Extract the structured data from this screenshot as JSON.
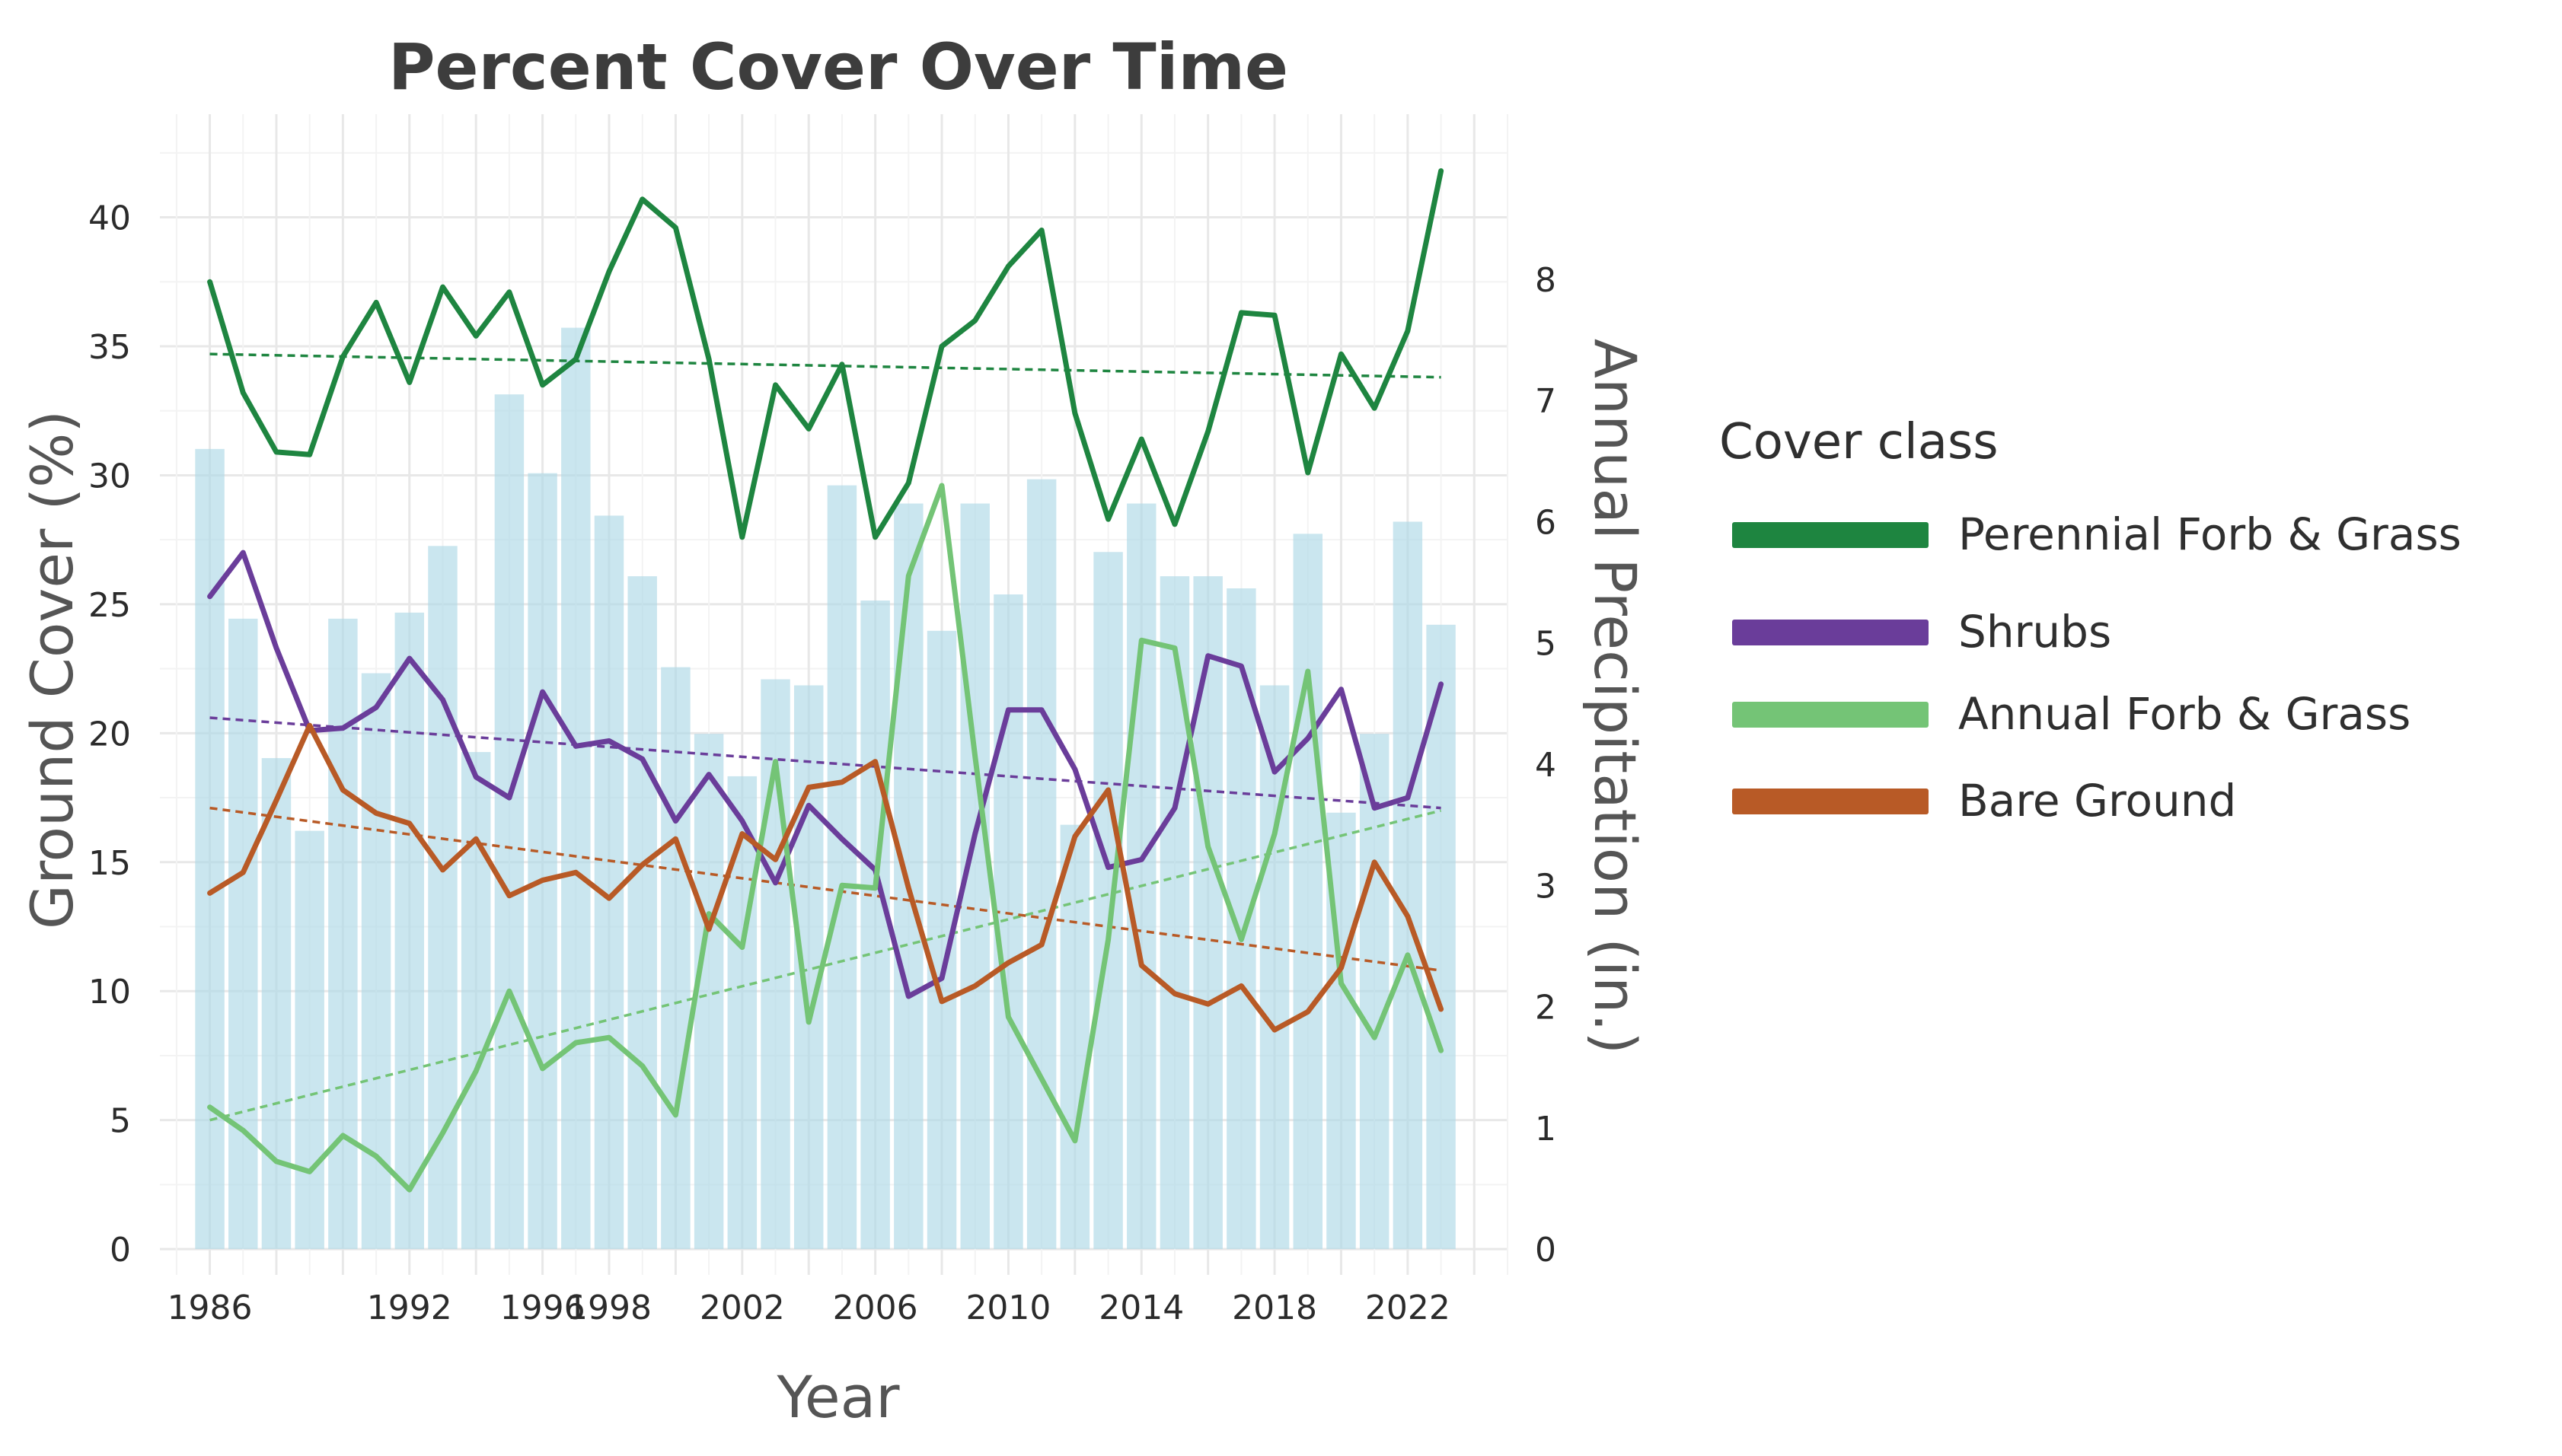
{
  "chart_data": {
    "type": "bar+line",
    "title": "Percent Cover Over Time",
    "xlabel": "Year",
    "ylabel": "Ground Cover (%)",
    "y2label": "Annual Precipitation (in.)",
    "xlim": [
      1984.5,
      2025
    ],
    "ylim": [
      -1,
      44
    ],
    "y2_scale_factor": 4.7,
    "x_ticks": [
      1986,
      1992,
      1996,
      1998,
      2002,
      2006,
      2010,
      2014,
      2018,
      2022
    ],
    "y_ticks": [
      0,
      5,
      10,
      15,
      20,
      25,
      30,
      35,
      40
    ],
    "y2_ticks": [
      0,
      1,
      2,
      3,
      4,
      5,
      6,
      7,
      8
    ],
    "grid": true,
    "legend_title": "Cover class",
    "legend_position": "right",
    "years": [
      1986,
      1987,
      1988,
      1989,
      1990,
      1991,
      1992,
      1993,
      1994,
      1995,
      1996,
      1997,
      1998,
      1999,
      2000,
      2001,
      2002,
      2003,
      2004,
      2005,
      2006,
      2007,
      2008,
      2009,
      2010,
      2011,
      2012,
      2013,
      2014,
      2015,
      2016,
      2017,
      2018,
      2019,
      2020,
      2021,
      2022,
      2023
    ],
    "precipitation": {
      "name": "Annual Precipitation (in.)",
      "color": "#add8e6",
      "values": [
        6.6,
        5.2,
        4.05,
        3.45,
        5.2,
        4.75,
        5.25,
        5.8,
        4.1,
        7.05,
        6.4,
        7.6,
        6.05,
        5.55,
        4.8,
        4.25,
        3.9,
        4.7,
        4.65,
        6.3,
        5.35,
        6.15,
        5.1,
        6.15,
        5.4,
        6.35,
        3.5,
        5.75,
        6.15,
        5.55,
        5.55,
        5.45,
        4.65,
        5.9,
        3.6,
        4.25,
        6.0,
        5.15
      ]
    },
    "series": [
      {
        "name": "Perennial Forb & Grass",
        "color": "#1e8540",
        "values": [
          37.5,
          33.2,
          30.9,
          30.8,
          34.6,
          36.7,
          33.6,
          37.3,
          35.4,
          37.1,
          33.5,
          34.5,
          37.9,
          40.7,
          39.6,
          34.5,
          27.6,
          33.5,
          31.8,
          34.3,
          27.6,
          29.7,
          35.0,
          36.0,
          38.1,
          39.5,
          32.4,
          28.3,
          31.4,
          28.1,
          31.7,
          36.3,
          36.2,
          30.1,
          34.7,
          32.6,
          35.6,
          41.8
        ],
        "trend": [
          34.7,
          33.8
        ]
      },
      {
        "name": "Shrubs",
        "color": "#6a3d9a",
        "values": [
          25.3,
          27.0,
          23.3,
          20.1,
          20.2,
          21.0,
          22.9,
          21.3,
          18.3,
          17.5,
          21.6,
          19.5,
          19.7,
          19.0,
          16.6,
          18.4,
          16.6,
          14.2,
          17.2,
          15.9,
          14.7,
          9.8,
          10.5,
          16.1,
          20.9,
          20.9,
          18.6,
          14.8,
          15.1,
          17.1,
          23.0,
          22.6,
          18.5,
          19.8,
          21.7,
          17.1,
          17.5,
          21.9
        ],
        "trend": [
          20.6,
          17.1
        ]
      },
      {
        "name": "Annual Forb & Grass",
        "color": "#74c476",
        "values": [
          5.5,
          4.6,
          3.4,
          3.0,
          4.4,
          3.6,
          2.3,
          4.5,
          6.9,
          10.0,
          7.0,
          8.0,
          8.2,
          7.1,
          5.2,
          13.0,
          11.7,
          18.9,
          8.8,
          14.1,
          14.0,
          26.1,
          29.6,
          19.1,
          9.0,
          6.6,
          4.2,
          12.0,
          23.6,
          23.3,
          15.6,
          12.0,
          16.1,
          22.4,
          10.3,
          8.2,
          11.4,
          7.7
        ],
        "trend": [
          5.0,
          17.0
        ]
      },
      {
        "name": "Bare Ground",
        "color": "#b85a26",
        "values": [
          13.8,
          14.6,
          17.4,
          20.3,
          17.8,
          16.9,
          16.5,
          14.7,
          15.9,
          13.7,
          14.3,
          14.6,
          13.6,
          14.9,
          15.9,
          12.4,
          16.1,
          15.1,
          17.9,
          18.1,
          18.9,
          14.0,
          9.6,
          10.2,
          11.1,
          11.8,
          16.0,
          17.8,
          11.0,
          9.9,
          9.5,
          10.2,
          8.5,
          9.2,
          10.9,
          15.0,
          12.9,
          9.3
        ],
        "trend": [
          17.1,
          10.8
        ]
      }
    ]
  }
}
